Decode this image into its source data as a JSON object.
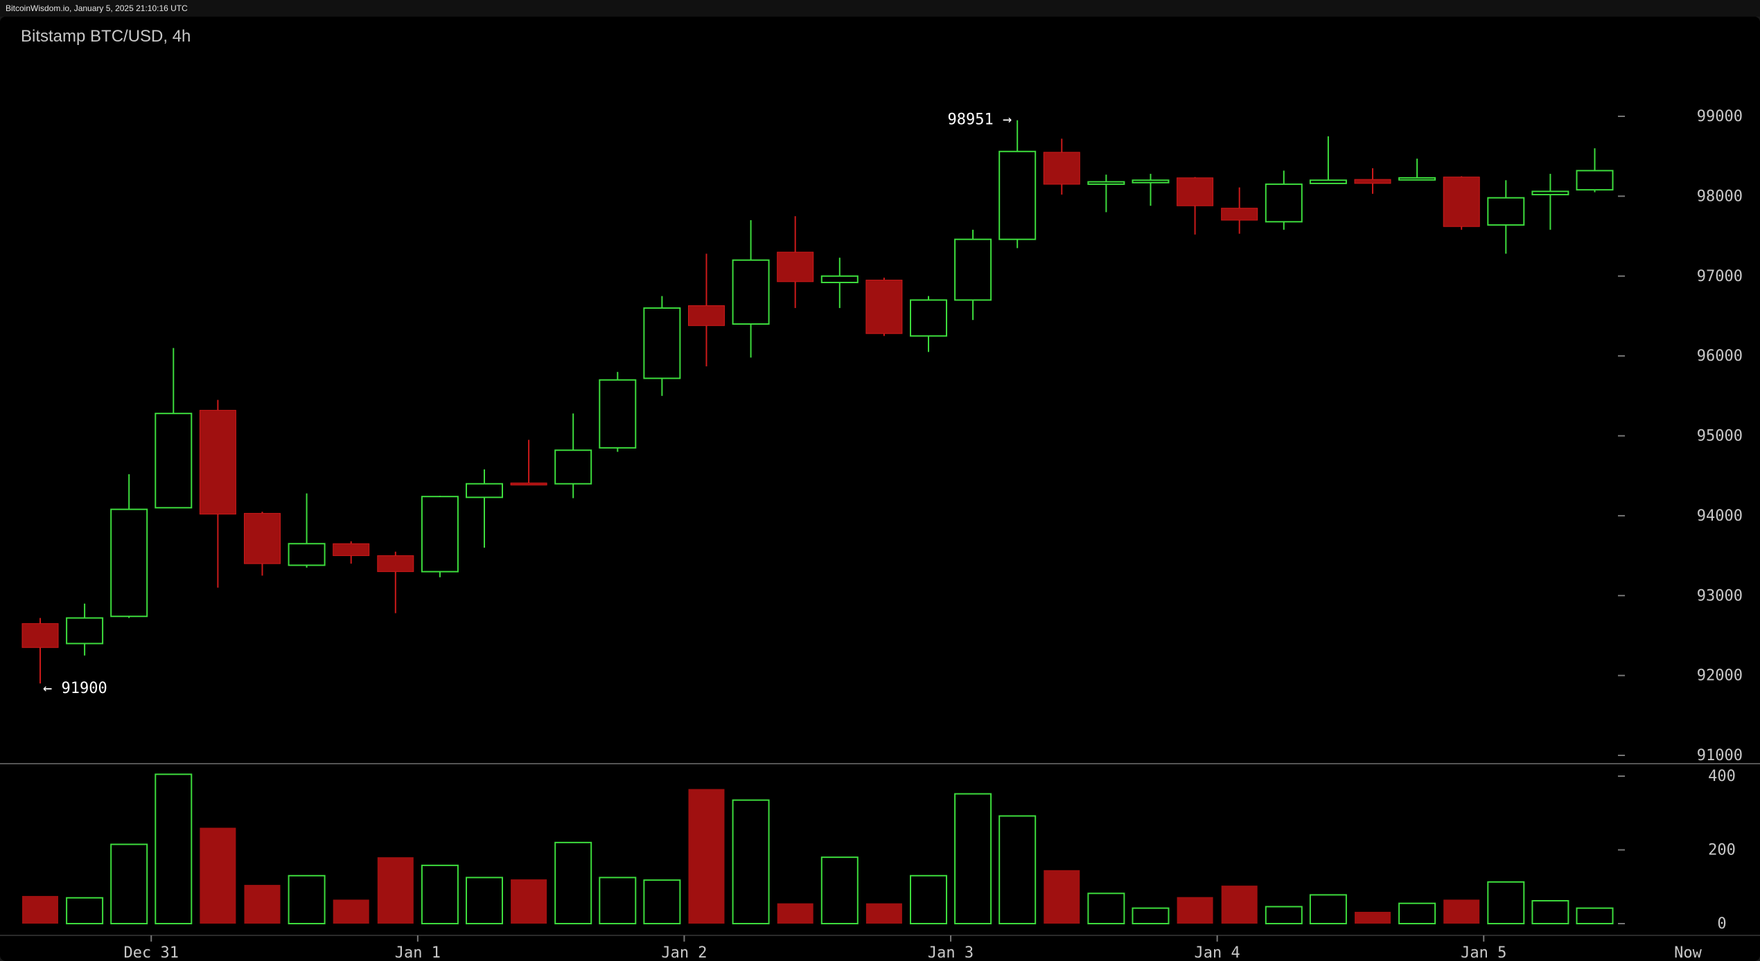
{
  "source": "BitcoinWisdom.io, January 5, 2025 21:10:16 UTC",
  "chart_data": {
    "type": "candlestick",
    "title": "Bitstamp BTC/USD, 4h",
    "colors": {
      "up": "#3ddc3d",
      "down": "#a01010",
      "down_wick": "#cc1a1a",
      "background": "#000000",
      "axis_text": "#c8c8c8"
    },
    "price_axis": {
      "ylim": [
        90800,
        99600
      ],
      "ticks": [
        91000,
        92000,
        93000,
        94000,
        95000,
        96000,
        97000,
        98000,
        99000
      ]
    },
    "volume_axis": {
      "ylim": [
        0,
        420
      ],
      "ticks": [
        0,
        200,
        400
      ]
    },
    "x_ticks": [
      {
        "label": "Dec 31",
        "index": 2.5
      },
      {
        "label": "Jan 1",
        "index": 8.5
      },
      {
        "label": "Jan 2",
        "index": 14.5
      },
      {
        "label": "Jan 3",
        "index": 20.5
      },
      {
        "label": "Jan 4",
        "index": 26.5
      },
      {
        "label": "Jan 5",
        "index": 32.5
      },
      {
        "label": "Now",
        "index": 37.5
      }
    ],
    "annotations": [
      {
        "text": "98951 →",
        "index": 22,
        "value": 98951,
        "side": "left"
      },
      {
        "text": "← 91900",
        "index": 0,
        "value": 91900,
        "side": "right"
      }
    ],
    "candles": [
      {
        "open": 92650,
        "high": 92720,
        "low": 91900,
        "close": 92350,
        "volume": 75
      },
      {
        "open": 92400,
        "high": 92900,
        "low": 92250,
        "close": 92720,
        "volume": 70
      },
      {
        "open": 92740,
        "high": 94520,
        "low": 92720,
        "close": 94080,
        "volume": 215
      },
      {
        "open": 94100,
        "high": 96100,
        "low": 94100,
        "close": 95280,
        "volume": 405
      },
      {
        "open": 95320,
        "high": 95450,
        "low": 93100,
        "close": 94020,
        "volume": 260
      },
      {
        "open": 94030,
        "high": 94050,
        "low": 93250,
        "close": 93400,
        "volume": 105
      },
      {
        "open": 93380,
        "high": 94280,
        "low": 93350,
        "close": 93650,
        "volume": 130
      },
      {
        "open": 93650,
        "high": 93680,
        "low": 93400,
        "close": 93500,
        "volume": 65
      },
      {
        "open": 93500,
        "high": 93550,
        "low": 92780,
        "close": 93300,
        "volume": 180
      },
      {
        "open": 93300,
        "high": 94250,
        "low": 93230,
        "close": 94240,
        "volume": 158
      },
      {
        "open": 94230,
        "high": 94580,
        "low": 93600,
        "close": 94400,
        "volume": 125
      },
      {
        "open": 94410,
        "high": 94950,
        "low": 94380,
        "close": 94400,
        "volume": 120
      },
      {
        "open": 94400,
        "high": 95280,
        "low": 94220,
        "close": 94820,
        "volume": 220
      },
      {
        "open": 94850,
        "high": 95800,
        "low": 94800,
        "close": 95700,
        "volume": 125
      },
      {
        "open": 95720,
        "high": 96750,
        "low": 95500,
        "close": 96600,
        "volume": 118
      },
      {
        "open": 96630,
        "high": 97280,
        "low": 95870,
        "close": 96380,
        "volume": 365
      },
      {
        "open": 96400,
        "high": 97700,
        "low": 95980,
        "close": 97200,
        "volume": 335
      },
      {
        "open": 97300,
        "high": 97750,
        "low": 96600,
        "close": 96930,
        "volume": 55
      },
      {
        "open": 96920,
        "high": 97230,
        "low": 96600,
        "close": 97000,
        "volume": 180
      },
      {
        "open": 96950,
        "high": 96980,
        "low": 96250,
        "close": 96280,
        "volume": 55
      },
      {
        "open": 96250,
        "high": 96750,
        "low": 96050,
        "close": 96700,
        "volume": 130
      },
      {
        "open": 96700,
        "high": 97580,
        "low": 96450,
        "close": 97460,
        "volume": 352
      },
      {
        "open": 97460,
        "high": 98951,
        "low": 97350,
        "close": 98560,
        "volume": 292
      },
      {
        "open": 98550,
        "high": 98720,
        "low": 98020,
        "close": 98150,
        "volume": 145
      },
      {
        "open": 98150,
        "high": 98270,
        "low": 97800,
        "close": 98180,
        "volume": 82
      },
      {
        "open": 98170,
        "high": 98280,
        "low": 97880,
        "close": 98200,
        "volume": 42
      },
      {
        "open": 98230,
        "high": 98240,
        "low": 97520,
        "close": 97880,
        "volume": 72
      },
      {
        "open": 97850,
        "high": 98110,
        "low": 97530,
        "close": 97700,
        "volume": 103
      },
      {
        "open": 97680,
        "high": 98320,
        "low": 97580,
        "close": 98150,
        "volume": 46
      },
      {
        "open": 98160,
        "high": 98750,
        "low": 98160,
        "close": 98200,
        "volume": 78
      },
      {
        "open": 98210,
        "high": 98350,
        "low": 98030,
        "close": 98160,
        "volume": 32
      },
      {
        "open": 98210,
        "high": 98470,
        "low": 98220,
        "close": 98230,
        "volume": 55
      },
      {
        "open": 98240,
        "high": 98250,
        "low": 97580,
        "close": 97620,
        "volume": 65
      },
      {
        "open": 97640,
        "high": 98200,
        "low": 97280,
        "close": 97980,
        "volume": 113
      },
      {
        "open": 98020,
        "high": 98280,
        "low": 97580,
        "close": 98060,
        "volume": 62
      },
      {
        "open": 98080,
        "high": 98600,
        "low": 98050,
        "close": 98320,
        "volume": 42
      }
    ]
  }
}
